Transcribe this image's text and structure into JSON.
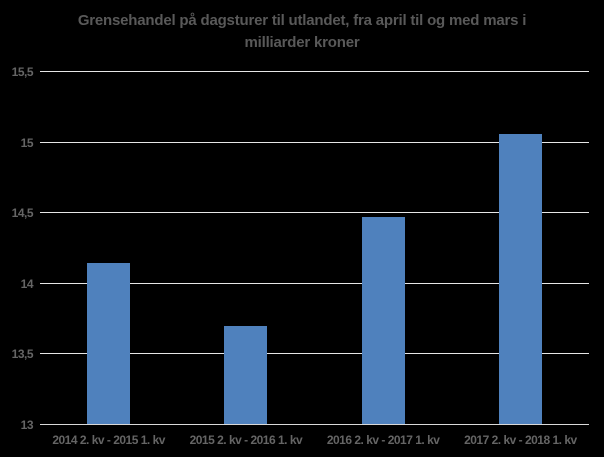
{
  "colors": {
    "background": "#000000",
    "bar": "#4f81bd",
    "title_text": "#595959",
    "axis_text": "#656565",
    "gridline": "#e6e6e6",
    "axis_line": "#d9d9d9"
  },
  "chart_data": {
    "type": "bar",
    "title": "Grensehandel på dagsturer til utlandet, fra april til og med mars i milliarder kroner",
    "categories": [
      "2014 2. kv - 2015 1. kv",
      "2015 2. kv - 2016 1. kv",
      "2016 2. kv - 2017 1. kv",
      "2017 2. kv - 2018 1. kv"
    ],
    "values": [
      14.15,
      13.7,
      14.47,
      15.06
    ],
    "xlabel": "",
    "ylabel": "",
    "ylim": [
      13,
      15.5
    ],
    "grid": true,
    "legend": false,
    "yticks": [
      {
        "label": "15,5",
        "value": 15.5
      },
      {
        "label": "15",
        "value": 15.0
      },
      {
        "label": "14,5",
        "value": 14.5
      },
      {
        "label": "14",
        "value": 14.0
      },
      {
        "label": "13,5",
        "value": 13.5
      },
      {
        "label": "13",
        "value": 13.0
      }
    ]
  }
}
